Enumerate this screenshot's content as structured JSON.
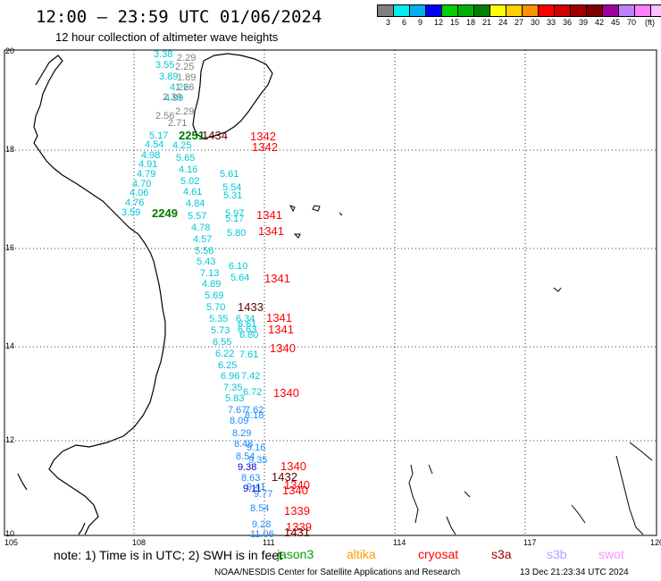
{
  "header": {
    "title": "12:00 – 23:59 UTC 01/06/2024",
    "subtitle": "12 hour collection of altimeter wave heights"
  },
  "colorbar": {
    "colors": [
      "#808080",
      "#00eeee",
      "#00b0f0",
      "#0000ff",
      "#00d000",
      "#00b000",
      "#008000",
      "#ffff00",
      "#ffd000",
      "#ff9000",
      "#ff0000",
      "#d00000",
      "#a00000",
      "#800000",
      "#a000a0",
      "#c080ff",
      "#ff80ff",
      "#ffc0ff",
      "#000000"
    ],
    "labels": [
      "3",
      "6",
      "9",
      "12",
      "15",
      "18",
      "21",
      "24",
      "27",
      "30",
      "33",
      "36",
      "39",
      "42",
      "45",
      "70",
      "(ft)"
    ]
  },
  "axes": {
    "lon_labels": [
      "105",
      "108",
      "111",
      "114",
      "117",
      "120"
    ],
    "lat_labels": [
      "20",
      "18",
      "16",
      "14",
      "12",
      "10"
    ]
  },
  "tracks": {
    "cyan_values": [
      "3.38",
      "3.55",
      "3.89",
      "4.26",
      "4.99",
      "5.17",
      "4.54",
      "4.98",
      "4.91",
      "4.79",
      "4.70",
      "4.06",
      "4.76",
      "3.59",
      "4.25",
      "5.65",
      "4.16",
      "5.02",
      "4.61",
      "4.84",
      "5.57",
      "4.78",
      "4.57",
      "5.56",
      "5.43",
      "7.13",
      "4.89",
      "5.69",
      "5.70",
      "5.35",
      "5.73",
      "6.55",
      "6.22",
      "6.25",
      "6.96",
      "7.35",
      "5.83",
      "5.61",
      "5.54",
      "5.31",
      "5.97",
      "5.17",
      "5.80",
      "6.10",
      "5.64",
      "6.34",
      "6.61",
      "6.63",
      "6.80",
      "7.61",
      "7.42",
      "6.72"
    ],
    "gray_values": [
      "2.29",
      "2.25",
      "1.89",
      "1.26",
      "2.39",
      "2.29",
      "2.71",
      "2.56"
    ],
    "blue_values": [
      "7.67",
      "8.09",
      "8.29",
      "8.48",
      "8.54",
      "8.63",
      "7.62",
      "8.18",
      "9.16",
      "9.35",
      "9.41",
      "9.77",
      "8.54",
      "9.28",
      "11.06"
    ],
    "dark_blue_values": [
      "9.38",
      "9.11"
    ],
    "red_labels": [
      "1342",
      "1342",
      "1341",
      "1341",
      "1341",
      "1341",
      "1341",
      "1340",
      "1340",
      "1340",
      "1340",
      "1340",
      "1339",
      "1339"
    ],
    "darkred_labels": [
      "1433",
      "1434",
      "1432",
      "1431"
    ],
    "green_labels": [
      "2251",
      "2249"
    ]
  },
  "footer": {
    "note": "note:  1) Time is in UTC;  2) SWH is in feet",
    "satellites": [
      {
        "name": "jason3",
        "color": "#00a000"
      },
      {
        "name": "altika",
        "color": "#ff9900"
      },
      {
        "name": "cryosat",
        "color": "#ff0000"
      },
      {
        "name": "s3a",
        "color": "#a00000"
      },
      {
        "name": "s3b",
        "color": "#b0a0ff"
      },
      {
        "name": "swot",
        "color": "#ff90ff"
      }
    ],
    "credit": "NOAA/NESDIS Center for Satellite Applications and Research",
    "timestamp": "13 Dec 21:23:34 UTC 2024"
  }
}
